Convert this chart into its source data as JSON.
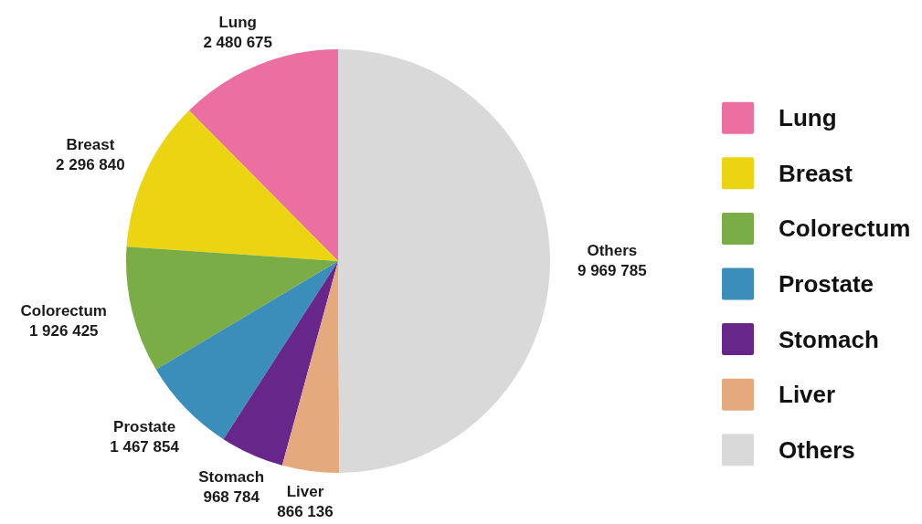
{
  "chart_data": {
    "type": "pie",
    "categories": [
      "Lung",
      "Breast",
      "Colorectum",
      "Prostate",
      "Stomach",
      "Liver",
      "Others"
    ],
    "values": [
      2480675,
      2296840,
      1926425,
      1467854,
      968784,
      866136,
      9969785
    ],
    "value_labels": [
      "2 480 675",
      "2 296 840",
      "1 926 425",
      "1 467 854",
      "968 784",
      "866 136",
      "9 969 785"
    ],
    "colors": [
      "#ec6fa2",
      "#ebd513",
      "#7aad46",
      "#3a8eb9",
      "#67278a",
      "#e4aa7e",
      "#d9d9d9"
    ],
    "legend": "right"
  }
}
